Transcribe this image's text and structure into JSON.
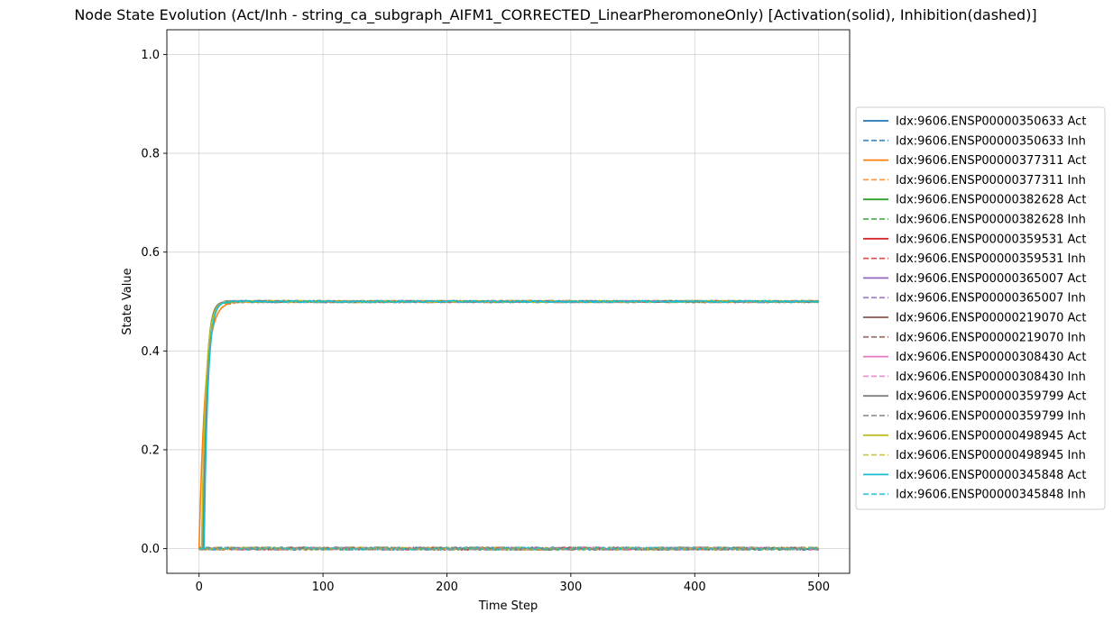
{
  "chart_data": {
    "type": "line",
    "title": "Node State Evolution (Act/Inh - string_ca_subgraph_AIFM1_CORRECTED_LinearPheromoneOnly) [Activation(solid), Inhibition(dashed)]",
    "xlabel": "Time Step",
    "ylabel": "State Value",
    "xlim": [
      -26,
      525
    ],
    "ylim": [
      -0.05,
      1.05
    ],
    "xticks": [
      0,
      100,
      200,
      300,
      400,
      500
    ],
    "yticks": [
      0.0,
      0.2,
      0.4,
      0.6,
      0.8,
      1.0
    ],
    "xtick_labels": [
      "0",
      "100",
      "200",
      "300",
      "400",
      "500"
    ],
    "ytick_labels": [
      "0.0",
      "0.2",
      "0.4",
      "0.6",
      "0.8",
      "1.0"
    ],
    "grid": true,
    "legend_position": "outside-right",
    "dynamics": {
      "activation_plateau": 0.5,
      "activation_rise_end_step": 20,
      "inhibition_level": 0.0,
      "x_max": 500
    },
    "series": [
      {
        "name": "Idx:9606.ENSP00000350633 Act",
        "color": "#1f77b4",
        "style": "solid",
        "start_step": 3,
        "rate": 0.35
      },
      {
        "name": "Idx:9606.ENSP00000350633 Inh",
        "color": "#1f77b4",
        "style": "dashed"
      },
      {
        "name": "Idx:9606.ENSP00000377311 Act",
        "color": "#ff7f0e",
        "style": "solid",
        "start_step": 0,
        "rate": 0.2
      },
      {
        "name": "Idx:9606.ENSP00000377311 Inh",
        "color": "#ff7f0e",
        "style": "dashed"
      },
      {
        "name": "Idx:9606.ENSP00000382628 Act",
        "color": "#2ca02c",
        "style": "solid",
        "start_step": 3,
        "rate": 0.36
      },
      {
        "name": "Idx:9606.ENSP00000382628 Inh",
        "color": "#2ca02c",
        "style": "dashed"
      },
      {
        "name": "Idx:9606.ENSP00000359531 Act",
        "color": "#d62728",
        "style": "solid",
        "start_step": 3,
        "rate": 0.35
      },
      {
        "name": "Idx:9606.ENSP00000359531 Inh",
        "color": "#d62728",
        "style": "dashed"
      },
      {
        "name": "Idx:9606.ENSP00000365007 Act",
        "color": "#9467bd",
        "style": "solid",
        "start_step": 3,
        "rate": 0.35
      },
      {
        "name": "Idx:9606.ENSP00000365007 Inh",
        "color": "#9467bd",
        "style": "dashed"
      },
      {
        "name": "Idx:9606.ENSP00000219070 Act",
        "color": "#8c564b",
        "style": "solid",
        "start_step": 3,
        "rate": 0.35
      },
      {
        "name": "Idx:9606.ENSP00000219070 Inh",
        "color": "#8c564b",
        "style": "dashed"
      },
      {
        "name": "Idx:9606.ENSP00000308430 Act",
        "color": "#e377c2",
        "style": "solid",
        "start_step": 3,
        "rate": 0.35
      },
      {
        "name": "Idx:9606.ENSP00000308430 Inh",
        "color": "#e377c2",
        "style": "dashed"
      },
      {
        "name": "Idx:9606.ENSP00000359799 Act",
        "color": "#7f7f7f",
        "style": "solid",
        "start_step": 3,
        "rate": 0.35
      },
      {
        "name": "Idx:9606.ENSP00000359799 Inh",
        "color": "#7f7f7f",
        "style": "dashed"
      },
      {
        "name": "Idx:9606.ENSP00000498945 Act",
        "color": "#bcbd22",
        "style": "solid",
        "start_step": 2,
        "rate": 0.3
      },
      {
        "name": "Idx:9606.ENSP00000498945 Inh",
        "color": "#bcbd22",
        "style": "dashed"
      },
      {
        "name": "Idx:9606.ENSP00000345848 Act",
        "color": "#17becf",
        "style": "solid",
        "start_step": 4,
        "rate": 0.33
      },
      {
        "name": "Idx:9606.ENSP00000345848 Inh",
        "color": "#17becf",
        "style": "dashed"
      }
    ]
  }
}
